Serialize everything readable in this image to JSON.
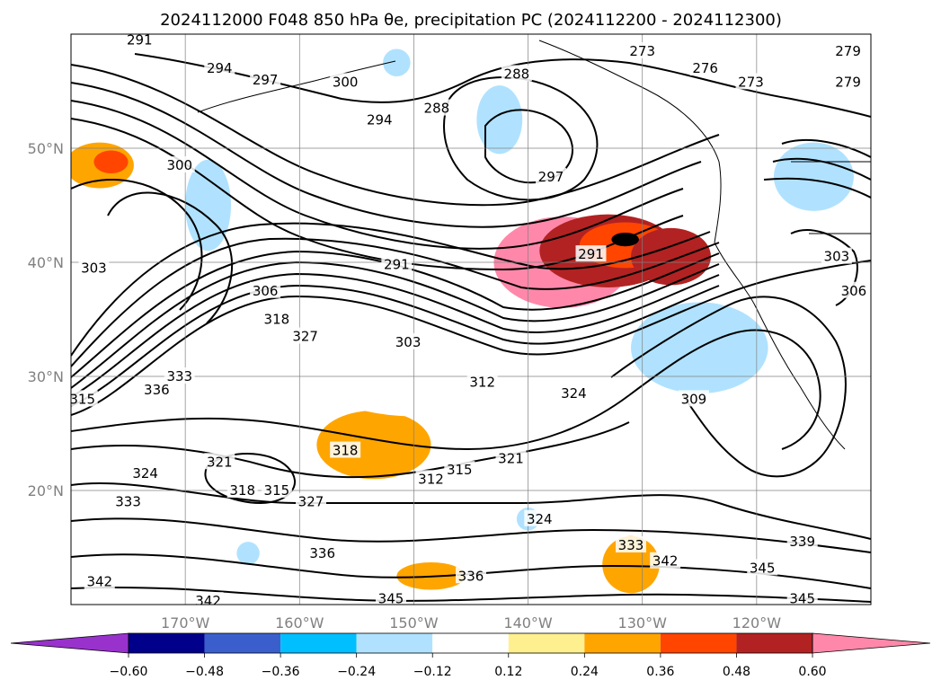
{
  "chart_data": {
    "type": "contour map",
    "title": "2024112000 F048 850 hPa θe, precipitation PC (2024112200 - 2024112300)",
    "map": {
      "lon_range": [
        -180,
        -110
      ],
      "lat_range": [
        10,
        60
      ],
      "lat_ticks": [
        {
          "value": 20,
          "label": "20°N"
        },
        {
          "value": 30,
          "label": "30°N"
        },
        {
          "value": 40,
          "label": "40°N"
        },
        {
          "value": 50,
          "label": "50°N"
        }
      ],
      "lon_ticks": [
        {
          "value": -170,
          "label": "170°W"
        },
        {
          "value": -160,
          "label": "160°W"
        },
        {
          "value": -150,
          "label": "150°W"
        },
        {
          "value": -140,
          "label": "140°W"
        },
        {
          "value": -130,
          "label": "130°W"
        },
        {
          "value": -120,
          "label": "120°W"
        }
      ],
      "grid": true
    },
    "colorbar": {
      "orientation": "horizontal",
      "extend": "both",
      "boundaries": [
        -0.6,
        -0.48,
        -0.36,
        -0.24,
        -0.12,
        0.12,
        0.24,
        0.36,
        0.48,
        0.6
      ],
      "tick_labels": [
        "−0.60",
        "−0.48",
        "−0.36",
        "−0.24",
        "−0.12",
        "0.12",
        "0.24",
        "0.36",
        "0.48",
        "0.60"
      ],
      "colors": [
        "#9932cc",
        "#00008b",
        "#3a5fcd",
        "#00bfff",
        "#b0e2ff",
        "#ffffff",
        "#fff08f",
        "#ffa500",
        "#ff4500",
        "#b22222",
        "#ff88aa"
      ]
    },
    "contour_labels": [
      {
        "text": "291",
        "lon": -174,
        "lat": 59.5
      },
      {
        "text": "294",
        "lon": -167,
        "lat": 57
      },
      {
        "text": "297",
        "lon": -163,
        "lat": 56
      },
      {
        "text": "300",
        "lon": -156,
        "lat": 55.8
      },
      {
        "text": "288",
        "lon": -141,
        "lat": 56.5
      },
      {
        "text": "273",
        "lon": -130,
        "lat": 58.5
      },
      {
        "text": "276",
        "lon": -124.5,
        "lat": 57
      },
      {
        "text": "273",
        "lon": -120.5,
        "lat": 55.8
      },
      {
        "text": "279",
        "lon": -112,
        "lat": 58.5
      },
      {
        "text": "279",
        "lon": -112,
        "lat": 55.8
      },
      {
        "text": "294",
        "lon": -153,
        "lat": 52.5
      },
      {
        "text": "288",
        "lon": -148,
        "lat": 53.5
      },
      {
        "text": "300",
        "lon": -170.5,
        "lat": 48.5
      },
      {
        "text": "297",
        "lon": -138,
        "lat": 47.5
      },
      {
        "text": "291",
        "lon": -134.5,
        "lat": 40.7
      },
      {
        "text": "291",
        "lon": -151.5,
        "lat": 39.8
      },
      {
        "text": "303",
        "lon": -178,
        "lat": 39.5
      },
      {
        "text": "306",
        "lon": -163,
        "lat": 37.5
      },
      {
        "text": "318",
        "lon": -162,
        "lat": 35
      },
      {
        "text": "327",
        "lon": -159.5,
        "lat": 33.5
      },
      {
        "text": "303",
        "lon": -150.5,
        "lat": 33
      },
      {
        "text": "312",
        "lon": -144,
        "lat": 29.5
      },
      {
        "text": "324",
        "lon": -136,
        "lat": 28.5
      },
      {
        "text": "309",
        "lon": -125.5,
        "lat": 28
      },
      {
        "text": "303",
        "lon": -113,
        "lat": 40.5
      },
      {
        "text": "306",
        "lon": -111.5,
        "lat": 37.5
      },
      {
        "text": "315",
        "lon": -179,
        "lat": 28
      },
      {
        "text": "336",
        "lon": -172.5,
        "lat": 28.8
      },
      {
        "text": "333",
        "lon": -170.5,
        "lat": 30
      },
      {
        "text": "318",
        "lon": -156,
        "lat": 23.5
      },
      {
        "text": "312",
        "lon": -148.5,
        "lat": 21
      },
      {
        "text": "315",
        "lon": -146,
        "lat": 21.8
      },
      {
        "text": "321",
        "lon": -141.5,
        "lat": 22.8
      },
      {
        "text": "324",
        "lon": -173.5,
        "lat": 21.5
      },
      {
        "text": "321",
        "lon": -167,
        "lat": 22.5
      },
      {
        "text": "318",
        "lon": -165,
        "lat": 20
      },
      {
        "text": "315",
        "lon": -162,
        "lat": 20
      },
      {
        "text": "327",
        "lon": -159,
        "lat": 19
      },
      {
        "text": "333",
        "lon": -175,
        "lat": 19
      },
      {
        "text": "324",
        "lon": -139,
        "lat": 17.5
      },
      {
        "text": "336",
        "lon": -158,
        "lat": 14.5
      },
      {
        "text": "336",
        "lon": -145,
        "lat": 12.5
      },
      {
        "text": "333",
        "lon": -131,
        "lat": 15.2
      },
      {
        "text": "342",
        "lon": -128,
        "lat": 13.8
      },
      {
        "text": "339",
        "lon": -116,
        "lat": 15.5
      },
      {
        "text": "345",
        "lon": -119.5,
        "lat": 13.2
      },
      {
        "text": "342",
        "lon": -177.5,
        "lat": 12
      },
      {
        "text": "342",
        "lon": -168,
        "lat": 10.3
      },
      {
        "text": "345",
        "lon": -152,
        "lat": 10.5
      },
      {
        "text": "345",
        "lon": -116,
        "lat": 10.5
      }
    ],
    "precip_areas": [
      {
        "class": 10,
        "lon": -137,
        "lat": 40,
        "rx": 6,
        "ry": 4
      },
      {
        "class": 9,
        "lon": -133,
        "lat": 41,
        "rx": 6,
        "ry": 3.2
      },
      {
        "class": 8,
        "lon": -131.5,
        "lat": 41.5,
        "rx": 4,
        "ry": 2
      },
      {
        "class": 9,
        "lon": -127.5,
        "lat": 40.5,
        "rx": 3.5,
        "ry": 2.5
      },
      {
        "class": 11,
        "lon": -131.5,
        "lat": 42,
        "rx": 1.2,
        "ry": 0.6
      },
      {
        "class": 8,
        "lon": -153.5,
        "lat": 24.5,
        "rx": 4,
        "ry": 2.5
      },
      {
        "class": 7,
        "lon": -153.5,
        "lat": 24,
        "rx": 5,
        "ry": 3
      },
      {
        "class": 7,
        "lon": -131,
        "lat": 13.5,
        "rx": 2.5,
        "ry": 2.5
      },
      {
        "class": 7,
        "lon": -148.5,
        "lat": 12.5,
        "rx": 3,
        "ry": 1.2
      },
      {
        "class": 7,
        "lon": -177.5,
        "lat": 48.5,
        "rx": 3,
        "ry": 2
      },
      {
        "class": 8,
        "lon": -176.5,
        "lat": 48.8,
        "rx": 1.5,
        "ry": 1
      },
      {
        "class": 3,
        "lon": -152,
        "lat": 33,
        "rx": 6,
        "ry": 4
      },
      {
        "class": 2,
        "lon": -155,
        "lat": 33.5,
        "rx": 4,
        "ry": 2.5
      },
      {
        "class": 4,
        "lon": -151,
        "lat": 32.5,
        "rx": 9,
        "ry": 5
      },
      {
        "class": 5,
        "lon": -150,
        "lat": 32.5,
        "rx": 11,
        "ry": 6
      },
      {
        "class": 1,
        "lon": -125.5,
        "lat": 32.5,
        "rx": 3,
        "ry": 2.2
      },
      {
        "class": 3,
        "lon": -125,
        "lat": 33,
        "rx": 4.5,
        "ry": 3.2
      },
      {
        "class": 4,
        "lon": -125,
        "lat": 32.5,
        "rx": 6,
        "ry": 4
      },
      {
        "class": 4,
        "lon": -142.5,
        "lat": 52.5,
        "rx": 2,
        "ry": 3
      },
      {
        "class": 3,
        "lon": -115,
        "lat": 48,
        "rx": 2,
        "ry": 2
      },
      {
        "class": 4,
        "lon": -115,
        "lat": 47.5,
        "rx": 3.5,
        "ry": 3
      },
      {
        "class": 4,
        "lon": -168,
        "lat": 45,
        "rx": 2,
        "ry": 4
      },
      {
        "class": 4,
        "lon": -151.5,
        "lat": 57.5,
        "rx": 1.2,
        "ry": 1.2
      },
      {
        "class": 4,
        "lon": -164.5,
        "lat": 14.5,
        "rx": 1,
        "ry": 1
      },
      {
        "class": 4,
        "lon": -140,
        "lat": 17.5,
        "rx": 1,
        "ry": 1
      }
    ]
  }
}
